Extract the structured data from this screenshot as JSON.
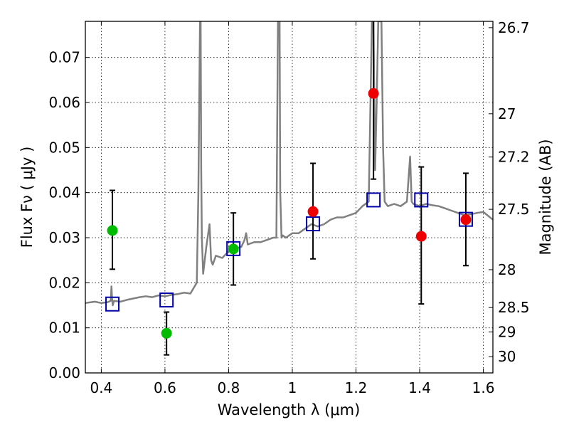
{
  "chart_data": {
    "type": "scatter",
    "xlabel": "Wavelength  λ (μm)",
    "ylabel": "Flux  Fν  ( μJy )",
    "y2label": "Magnitude (AB)",
    "xlim": [
      0.35,
      1.63
    ],
    "ylim": [
      0.0,
      0.078
    ],
    "grid": true,
    "x_ticks": [
      0.4,
      0.6,
      0.8,
      1.0,
      1.2,
      1.4,
      1.6
    ],
    "x_tick_labels": [
      "0.4",
      "0.6",
      "0.8",
      "1",
      "1.2",
      "1.4",
      "1.6"
    ],
    "y_ticks": [
      0.0,
      0.01,
      0.02,
      0.03,
      0.04,
      0.05,
      0.06,
      0.07
    ],
    "y_tick_labels": [
      "0.00",
      "0.01",
      "0.02",
      "0.03",
      "0.04",
      "0.05",
      "0.06",
      "0.07"
    ],
    "magnitude_ticks": [
      {
        "label": "26.7",
        "flux": 0.0766
      },
      {
        "label": "27",
        "flux": 0.0575
      },
      {
        "label": "27.2",
        "flux": 0.0479
      },
      {
        "label": "27.5",
        "flux": 0.0363
      },
      {
        "label": "28",
        "flux": 0.0229
      },
      {
        "label": "28.5",
        "flux": 0.0145
      },
      {
        "label": "29",
        "flux": 0.0091
      },
      {
        "label": "30",
        "flux": 0.0036
      }
    ],
    "colors": {
      "template": "#808080",
      "model_box": "#0000aa",
      "green_points": "#00bb00",
      "red_points": "#ee0000",
      "error_bar": "#000000"
    },
    "series": [
      {
        "name": "template_spectrum",
        "style": "line",
        "x": [
          0.35,
          0.38,
          0.4,
          0.42,
          0.43,
          0.432,
          0.434,
          0.436,
          0.44,
          0.46,
          0.48,
          0.5,
          0.52,
          0.54,
          0.56,
          0.58,
          0.6,
          0.62,
          0.64,
          0.66,
          0.68,
          0.7,
          0.705,
          0.71,
          0.712,
          0.714,
          0.716,
          0.72,
          0.73,
          0.74,
          0.745,
          0.75,
          0.76,
          0.78,
          0.8,
          0.82,
          0.84,
          0.85,
          0.855,
          0.86,
          0.88,
          0.9,
          0.92,
          0.94,
          0.95,
          0.955,
          0.958,
          0.96,
          0.962,
          0.966,
          0.97,
          0.98,
          1.0,
          1.02,
          1.04,
          1.06,
          1.08,
          1.1,
          1.12,
          1.14,
          1.16,
          1.18,
          1.2,
          1.22,
          1.24,
          1.25,
          1.255,
          1.26,
          1.265,
          1.27,
          1.28,
          1.285,
          1.29,
          1.295,
          1.3,
          1.32,
          1.34,
          1.36,
          1.37,
          1.375,
          1.38,
          1.4,
          1.42,
          1.44,
          1.46,
          1.48,
          1.5,
          1.52,
          1.54,
          1.56,
          1.58,
          1.6,
          1.63
        ],
        "y": [
          0.0155,
          0.0158,
          0.0155,
          0.0157,
          0.016,
          0.0192,
          0.0165,
          0.015,
          0.016,
          0.0158,
          0.0162,
          0.0165,
          0.0168,
          0.017,
          0.0168,
          0.0172,
          0.017,
          0.0173,
          0.0175,
          0.0178,
          0.0176,
          0.02,
          0.04,
          0.078,
          0.078,
          0.045,
          0.03,
          0.022,
          0.028,
          0.033,
          0.025,
          0.024,
          0.026,
          0.0255,
          0.027,
          0.0275,
          0.028,
          0.0295,
          0.031,
          0.0285,
          0.029,
          0.029,
          0.0295,
          0.03,
          0.03,
          0.078,
          0.078,
          0.078,
          0.04,
          0.03,
          0.0305,
          0.03,
          0.031,
          0.031,
          0.032,
          0.033,
          0.0325,
          0.033,
          0.034,
          0.0345,
          0.0345,
          0.035,
          0.0355,
          0.037,
          0.038,
          0.078,
          0.078,
          0.045,
          0.06,
          0.078,
          0.078,
          0.05,
          0.038,
          0.0375,
          0.037,
          0.0375,
          0.037,
          0.038,
          0.048,
          0.038,
          0.0375,
          0.037,
          0.0375,
          0.0372,
          0.037,
          0.0365,
          0.036,
          0.0355,
          0.035,
          0.0352,
          0.0355,
          0.0357,
          0.034
        ]
      },
      {
        "name": "model_photometry",
        "style": "open-square",
        "x": [
          0.435,
          0.605,
          0.815,
          1.065,
          1.255,
          1.405,
          1.545
        ],
        "y": [
          0.0152,
          0.0161,
          0.0275,
          0.033,
          0.0383,
          0.0383,
          0.034
        ]
      },
      {
        "name": "observed_green",
        "style": "filled-circle",
        "x": [
          0.435,
          0.605,
          0.815
        ],
        "y": [
          0.0316,
          0.0088,
          0.0275
        ],
        "yerr_low": [
          0.023,
          0.004,
          0.0195
        ],
        "yerr_high": [
          0.0405,
          0.0135,
          0.0355
        ]
      },
      {
        "name": "observed_red",
        "style": "filled-circle",
        "x": [
          1.065,
          1.255,
          1.405,
          1.545
        ],
        "y": [
          0.0358,
          0.062,
          0.0303,
          0.034
        ],
        "yerr_low": [
          0.0253,
          0.043,
          0.0153,
          0.0238
        ],
        "yerr_high": [
          0.0465,
          0.078,
          0.0457,
          0.0443
        ]
      }
    ]
  }
}
